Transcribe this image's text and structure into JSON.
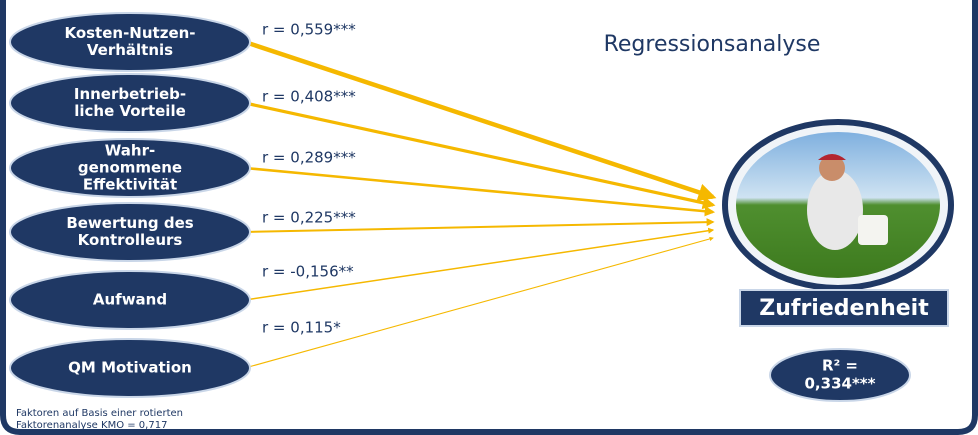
{
  "title": "Regressionsanalyse",
  "nodes": [
    {
      "lines": [
        "Kosten-Nutzen-",
        "Verhältnis"
      ]
    },
    {
      "lines": [
        "Innerbetrieb-",
        "liche Vorteile"
      ]
    },
    {
      "lines": [
        "Wahr-",
        "genommene",
        "Effektivität"
      ]
    },
    {
      "lines": [
        "Bewertung des",
        "Kontrolleurs"
      ]
    },
    {
      "lines": [
        "Aufwand"
      ]
    },
    {
      "lines": [
        "QM Motivation"
      ]
    }
  ],
  "edges": [
    {
      "label": "r = 0,559***"
    },
    {
      "label": "r = 0,408***"
    },
    {
      "label": "r = 0,289***"
    },
    {
      "label": "r = 0,225***"
    },
    {
      "label": "r = -0,156**"
    },
    {
      "label": "r = 0,115*"
    }
  ],
  "target": {
    "label": "Zufriedenheit"
  },
  "r_squared": {
    "lines": [
      "R² =",
      "0,334***"
    ]
  },
  "footnote": {
    "lines": [
      "Faktoren auf Basis einer rotierten",
      "Faktorenanalyse KMO = 0,717"
    ]
  }
}
